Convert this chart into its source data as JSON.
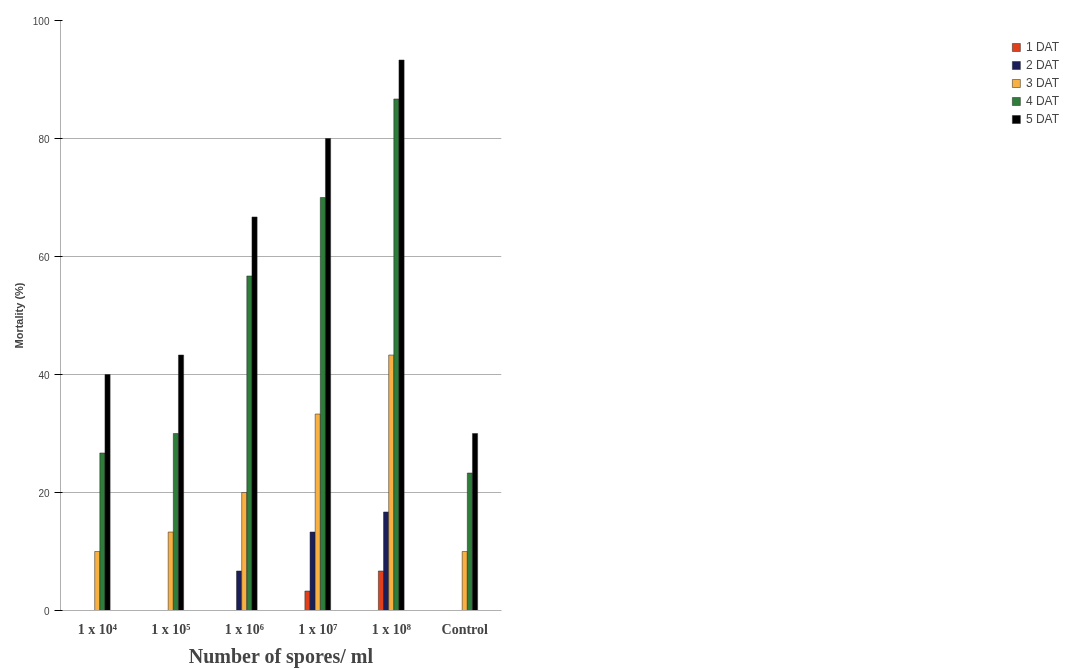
{
  "chart_data": {
    "type": "bar",
    "xlabel": "Number of spores/ ml",
    "ylabel": "Mortality (%)",
    "categories": [
      "1 x 10⁴",
      "1 x 10⁵",
      "1 x 10⁶",
      "1 x 10⁷",
      "1 x 10⁸",
      "Control"
    ],
    "series": [
      {
        "name": "1 DAT",
        "color": "#e0401c",
        "values": [
          null,
          null,
          null,
          3.3,
          6.7,
          null
        ]
      },
      {
        "name": "2 DAT",
        "color": "#1a1f5a",
        "values": [
          null,
          null,
          6.7,
          13.3,
          16.7,
          null
        ]
      },
      {
        "name": "3 DAT",
        "color": "#f9b042",
        "values": [
          10,
          13.3,
          20,
          33.3,
          43.3,
          10
        ]
      },
      {
        "name": "4 DAT",
        "color": "#2e7d3a",
        "values": [
          26.7,
          30,
          56.7,
          70,
          86.7,
          23.3
        ]
      },
      {
        "name": "5 DAT",
        "color": "#000000",
        "values": [
          40,
          43.3,
          66.7,
          80,
          93.3,
          30
        ]
      }
    ],
    "ylim": [
      0,
      100
    ],
    "yticks": [
      0,
      20,
      40,
      60,
      80,
      100
    ],
    "grid": "y",
    "legend": "right"
  }
}
